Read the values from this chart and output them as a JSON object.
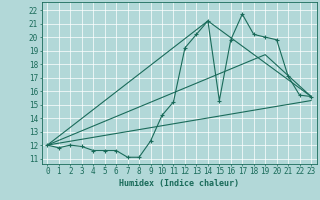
{
  "xlabel": "Humidex (Indice chaleur)",
  "bg_color": "#b2d8d8",
  "grid_color": "#ffffff",
  "line_color": "#1a6b5a",
  "xlim": [
    -0.5,
    23.5
  ],
  "ylim": [
    10.6,
    22.6
  ],
  "yticks": [
    11,
    12,
    13,
    14,
    15,
    16,
    17,
    18,
    19,
    20,
    21,
    22
  ],
  "xticks": [
    0,
    1,
    2,
    3,
    4,
    5,
    6,
    7,
    8,
    9,
    10,
    11,
    12,
    13,
    14,
    15,
    16,
    17,
    18,
    19,
    20,
    21,
    22,
    23
  ],
  "main_line_x": [
    0,
    1,
    2,
    3,
    4,
    5,
    6,
    7,
    8,
    9,
    10,
    11,
    12,
    13,
    14,
    15,
    16,
    17,
    18,
    19,
    20,
    21,
    22,
    23
  ],
  "main_line_y": [
    12.0,
    11.8,
    12.0,
    11.9,
    11.6,
    11.6,
    11.6,
    11.1,
    11.1,
    12.3,
    14.2,
    15.2,
    19.2,
    20.2,
    21.2,
    15.3,
    19.8,
    21.7,
    20.2,
    20.0,
    19.8,
    17.1,
    15.7,
    15.6
  ],
  "line2_x": [
    0,
    14,
    23
  ],
  "line2_y": [
    12.0,
    21.2,
    15.6
  ],
  "line3_x": [
    0,
    19,
    23
  ],
  "line3_y": [
    12.0,
    18.7,
    15.6
  ],
  "line4_x": [
    0,
    23
  ],
  "line4_y": [
    12.0,
    15.3
  ]
}
